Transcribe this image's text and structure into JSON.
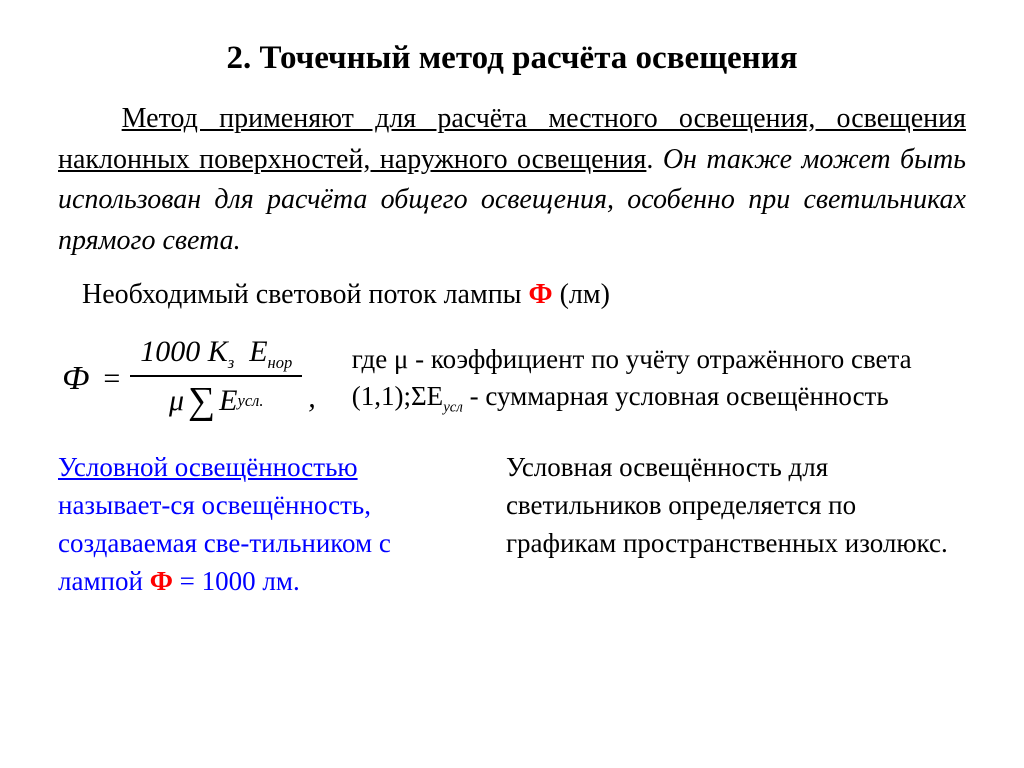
{
  "title": "2. Точечный метод расчёта освещения",
  "para1_a": "Метод применяют для расчёта местного освещения, освещения наклонных поверхностей, наружного освещения",
  "para1_b": ". ",
  "para1_c": "Он также может быть использован для расчёта общего освещения, особенно при светильниках прямого света.",
  "para2_a": "Необходимый световой поток лампы ",
  "para2_b": "Ф",
  "para2_c": " (лм)",
  "formula": {
    "phi": "Ф",
    "eq": "=",
    "num_a": "1000 ",
    "num_b": "K",
    "num_b_sub": "з",
    "num_c": "E",
    "num_c_sub": "нор",
    "den_mu": "μ",
    "den_sigma": "∑",
    "den_e": "E",
    "den_e_sub": "усл.",
    "comma": ","
  },
  "desc_a": "где  μ - коэффициент по учёту отражённого света  (1,1);ΣЕ",
  "desc_a_sub": "усл",
  "desc_b": " - суммарная условная освещённость",
  "left_a": "Условной освещённостью",
  "left_b": " называет-ся освещённость, создаваемая све-тильником с лампой ",
  "left_c": "Ф",
  "left_d": " = 1000 лм.",
  "right": "Условная освещённость для светильников определяется по графикам пространственных изолюкс."
}
